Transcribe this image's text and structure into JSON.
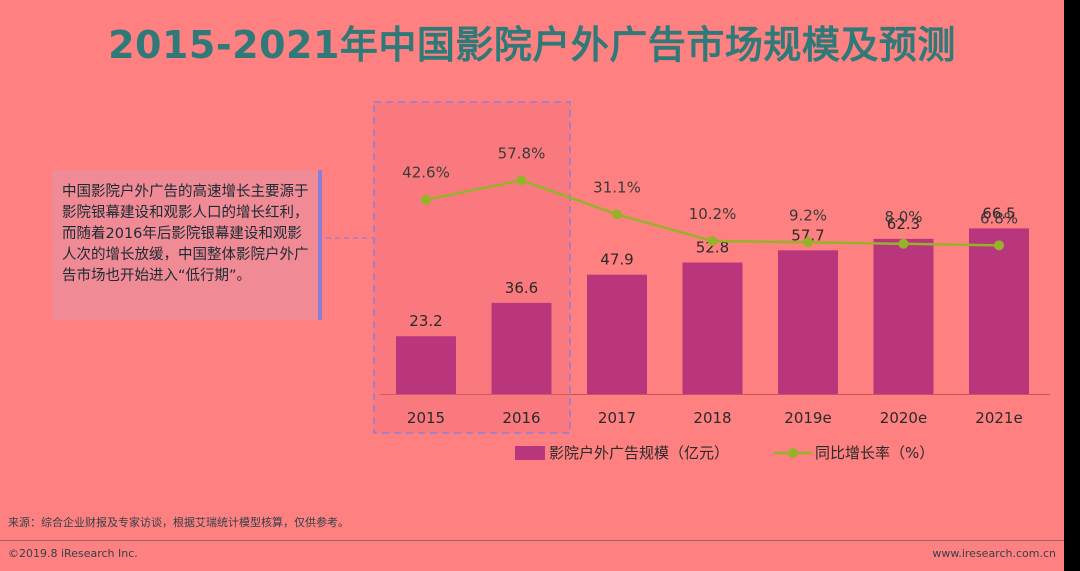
{
  "title": "2015-2021年中国影院户外广告市场规模及预测",
  "note": "中国影院户外广告的高速增长主要源于影院银幕建设和观影人口的增长红利，而随着2016年后影院银幕建设和观影人次的增长放缓，中国整体影院户外广告市场也开始进入“低行期”。",
  "source": "来源：综合企业财报及专家访谈，根据艾瑞统计模型核算，仅供参考。",
  "footer": {
    "left": "©2019.8 iResearch Inc.",
    "right": "www.iresearch.com.cn"
  },
  "colors": {
    "bar": "#b9357c",
    "line": "#96b22a",
    "title": "#2f7a78",
    "background": "#ff8080"
  },
  "chart_data": {
    "type": "bar",
    "categories": [
      "2015",
      "2016",
      "2017",
      "2018",
      "2019e",
      "2020e",
      "2021e"
    ],
    "series": [
      {
        "name": "影院户外广告规模（亿元）",
        "type": "bar",
        "values": [
          23.2,
          36.6,
          47.9,
          52.8,
          57.7,
          62.3,
          66.5
        ]
      },
      {
        "name": "同比增长率（%）",
        "type": "line",
        "values": [
          42.6,
          57.8,
          31.1,
          10.2,
          9.2,
          8.0,
          6.8
        ],
        "labels": [
          "42.6%",
          "57.8%",
          "31.1%",
          "10.2%",
          "9.2%",
          "8.0%",
          "6.8%"
        ]
      }
    ],
    "legend": "bottom",
    "grid": false
  }
}
